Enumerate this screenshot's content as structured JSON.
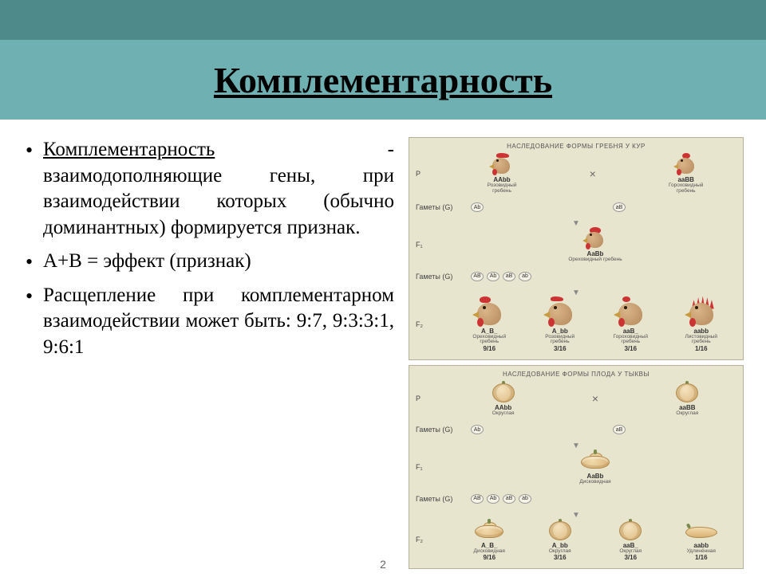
{
  "title": "Комплементарность",
  "bullets": {
    "b1_term": "Комплементарность",
    "b1_rest": " - взаимодополняющие гены, при взаимодействии которых (обычно доминантных) формируется признак.",
    "b2": "А+В = эффект (признак)",
    "b3": "Расщепление при комплементарном взаимодействии может быть: 9:7, 9:3:3:1, 9:6:1"
  },
  "panel1": {
    "title": "НАСЛЕДОВАНИЕ ФОРМЫ ГРЕБНЯ У КУР",
    "rows": {
      "P": "P",
      "G": "Гаметы (G)",
      "F1": "F₁",
      "F2": "F₂"
    },
    "P": [
      {
        "geno": "AAbb",
        "desc": "Розовидный\nгребень",
        "comb": "rose"
      },
      {
        "geno": "aaBB",
        "desc": "Гороховидный\nгребень",
        "comb": "pea"
      }
    ],
    "P_gametes": [
      [
        "Ab"
      ],
      [
        "aB"
      ]
    ],
    "F1": {
      "geno": "AaBb",
      "desc": "Ореховидный гребень",
      "comb": "walnut"
    },
    "F1_gametes": [
      "AB",
      "Ab",
      "aB",
      "ab"
    ],
    "F2": [
      {
        "geno": "A_B_",
        "desc": "Ореховидный\nгребень",
        "ratio": "9/16",
        "comb": "walnut"
      },
      {
        "geno": "A_bb",
        "desc": "Розовидный\nгребень",
        "ratio": "3/16",
        "comb": "rose"
      },
      {
        "geno": "aaB_",
        "desc": "Гороховидный\nгребень",
        "ratio": "3/16",
        "comb": "pea"
      },
      {
        "geno": "aabb",
        "desc": "Листовидный\nгребень",
        "ratio": "1/16",
        "comb": "single"
      }
    ]
  },
  "panel2": {
    "title": "НАСЛЕДОВАНИЕ ФОРМЫ ПЛОДА У ТЫКВЫ",
    "P": [
      {
        "geno": "AAbb",
        "desc": "Округлая",
        "shape": "pk-round"
      },
      {
        "geno": "aaBB",
        "desc": "Округлая",
        "shape": "pk-round"
      }
    ],
    "P_gametes": [
      [
        "Ab"
      ],
      [
        "aB"
      ]
    ],
    "F1": {
      "geno": "AaBb",
      "desc": "Дисковидная",
      "shape": "pk-disc"
    },
    "F1_gametes": [
      "AB",
      "Ab",
      "aB",
      "ab"
    ],
    "F2": [
      {
        "geno": "A_B_",
        "desc": "Дисковидная",
        "ratio": "9/16",
        "shape": "pk-disc"
      },
      {
        "geno": "A_bb",
        "desc": "Округлая",
        "ratio": "3/16",
        "shape": "pk-round"
      },
      {
        "geno": "aaB_",
        "desc": "Округлая",
        "ratio": "3/16",
        "shape": "pk-round"
      },
      {
        "geno": "aabb",
        "desc": "Удлинённая",
        "ratio": "1/16",
        "shape": "pk-long"
      }
    ]
  },
  "page_number": "2"
}
